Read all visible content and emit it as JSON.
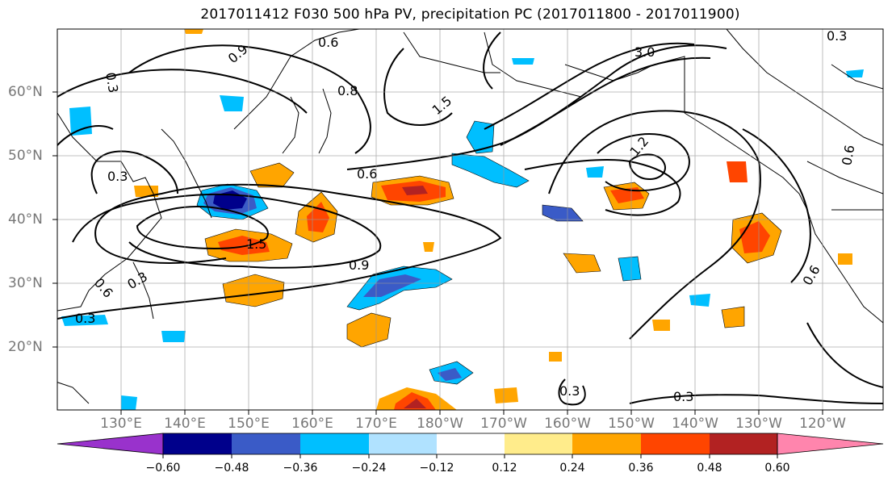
{
  "title": "2017011412 F030 500 hPa PV, precipitation PC (2017011800 - 2017011900)",
  "lat_labels": [
    "60°N",
    "50°N",
    "40°N",
    "30°N",
    "20°N"
  ],
  "lon_labels": [
    "130°E",
    "140°E",
    "150°E",
    "160°E",
    "170°E",
    "180°W",
    "170°W",
    "160°W",
    "150°W",
    "140°W",
    "130°W",
    "120°W"
  ],
  "contour_labels": [
    "0.6",
    "0.9",
    "0.3",
    "0.8",
    "1.5",
    "3.0",
    "0.3",
    "0.6",
    "0.3",
    "0.6",
    "1.2",
    "1.5",
    "0.9",
    "0.6",
    "0.3",
    "0.3",
    "0.3",
    "0.3",
    "0.6"
  ],
  "colorbar": {
    "ticks": [
      "−0.60",
      "−0.48",
      "−0.36",
      "−0.24",
      "−0.12",
      "0.12",
      "0.24",
      "0.36",
      "0.48",
      "0.60"
    ],
    "colors": [
      "#9932cc",
      "#00008b",
      "#3a5bc7",
      "#00bfff",
      "#b0e2ff",
      "#ffffff",
      "#ffec8b",
      "#ffa500",
      "#ff4500",
      "#b22222",
      "#ff85ad"
    ]
  },
  "colors": {
    "land_outline": "#000000",
    "grid": "#999999",
    "axis_label": "#777777"
  }
}
